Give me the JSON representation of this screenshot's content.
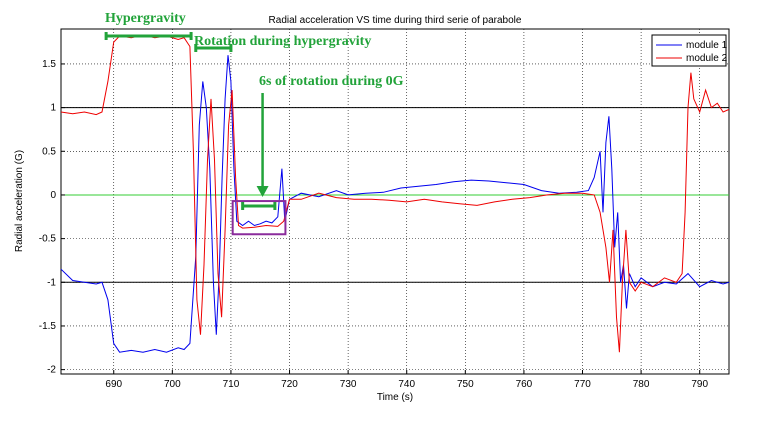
{
  "chart_data": {
    "type": "line",
    "title": "Radial acceleration VS time during third serie of parabole",
    "xlabel": "Time (s)",
    "ylabel": "Radial acceleration (G)",
    "xlim": [
      681,
      795
    ],
    "ylim": [
      -2.05,
      1.9
    ],
    "xticks": [
      690,
      700,
      710,
      720,
      730,
      740,
      750,
      760,
      770,
      780,
      790
    ],
    "yticks": [
      1.5,
      1,
      0.5,
      0,
      -0.5,
      -1,
      -1.5,
      -2
    ],
    "xtick_labels": [
      "690",
      "700",
      "710",
      "720",
      "730",
      "740",
      "750",
      "760",
      "770",
      "780",
      "790"
    ],
    "ytick_labels": [
      "1.5",
      "1",
      "0.5",
      "0",
      "-0.5",
      "-1",
      "-1.5",
      "-2"
    ],
    "grid": true,
    "legend_position": "top-right",
    "reference_lines": [
      {
        "y": 1,
        "color": "#000000"
      },
      {
        "y": -1,
        "color": "#000000"
      },
      {
        "y": 0,
        "color": "#33cc33"
      }
    ],
    "series": [
      {
        "name": "module 1",
        "color": "#0000ee",
        "points": [
          [
            681,
            -0.85
          ],
          [
            683,
            -0.98
          ],
          [
            685,
            -1.0
          ],
          [
            687,
            -1.02
          ],
          [
            688,
            -1.0
          ],
          [
            689,
            -1.2
          ],
          [
            690,
            -1.7
          ],
          [
            691,
            -1.8
          ],
          [
            693,
            -1.78
          ],
          [
            695,
            -1.8
          ],
          [
            697,
            -1.77
          ],
          [
            699,
            -1.8
          ],
          [
            701,
            -1.75
          ],
          [
            702,
            -1.77
          ],
          [
            703,
            -1.7
          ],
          [
            704,
            -0.7
          ],
          [
            704.6,
            0.8
          ],
          [
            705.2,
            1.3
          ],
          [
            705.8,
            1.0
          ],
          [
            706.4,
            0.3
          ],
          [
            707,
            -1.0
          ],
          [
            707.5,
            -1.6
          ],
          [
            708,
            -0.9
          ],
          [
            708.5,
            0.2
          ],
          [
            709,
            1.1
          ],
          [
            709.5,
            1.6
          ],
          [
            710,
            1.3
          ],
          [
            710.5,
            0.3
          ],
          [
            711,
            -0.3
          ],
          [
            712,
            -0.35
          ],
          [
            713,
            -0.3
          ],
          [
            714,
            -0.35
          ],
          [
            715,
            -0.33
          ],
          [
            716,
            -0.3
          ],
          [
            717,
            -0.32
          ],
          [
            718,
            -0.25
          ],
          [
            718.7,
            0.3
          ],
          [
            719.2,
            -0.3
          ],
          [
            720,
            -0.05
          ],
          [
            722,
            0.02
          ],
          [
            725,
            -0.02
          ],
          [
            728,
            0.05
          ],
          [
            730,
            0.0
          ],
          [
            733,
            0.02
          ],
          [
            736,
            0.03
          ],
          [
            739,
            0.08
          ],
          [
            742,
            0.1
          ],
          [
            745,
            0.12
          ],
          [
            748,
            0.15
          ],
          [
            751,
            0.17
          ],
          [
            754,
            0.16
          ],
          [
            757,
            0.14
          ],
          [
            760,
            0.12
          ],
          [
            763,
            0.05
          ],
          [
            766,
            0.02
          ],
          [
            769,
            0.03
          ],
          [
            771,
            0.05
          ],
          [
            772,
            0.2
          ],
          [
            773,
            0.5
          ],
          [
            773.5,
            -0.2
          ],
          [
            774,
            0.6
          ],
          [
            774.5,
            0.9
          ],
          [
            775,
            0.3
          ],
          [
            775.5,
            -0.6
          ],
          [
            776,
            -0.2
          ],
          [
            776.5,
            -1.0
          ],
          [
            777,
            -0.8
          ],
          [
            777.5,
            -1.3
          ],
          [
            778,
            -0.9
          ],
          [
            779,
            -1.05
          ],
          [
            780,
            -0.95
          ],
          [
            782,
            -1.05
          ],
          [
            784,
            -1.0
          ],
          [
            786,
            -1.02
          ],
          [
            788,
            -0.9
          ],
          [
            790,
            -1.05
          ],
          [
            792,
            -0.98
          ],
          [
            794,
            -1.02
          ],
          [
            795,
            -1.0
          ]
        ]
      },
      {
        "name": "module 2",
        "color": "#ee0000",
        "points": [
          [
            681,
            0.95
          ],
          [
            683,
            0.93
          ],
          [
            685,
            0.95
          ],
          [
            687,
            0.92
          ],
          [
            688,
            0.95
          ],
          [
            689,
            1.3
          ],
          [
            690,
            1.75
          ],
          [
            691,
            1.82
          ],
          [
            693,
            1.8
          ],
          [
            695,
            1.83
          ],
          [
            697,
            1.8
          ],
          [
            699,
            1.82
          ],
          [
            701,
            1.78
          ],
          [
            702,
            1.8
          ],
          [
            703,
            1.7
          ],
          [
            703.6,
            0.5
          ],
          [
            704.2,
            -1.2
          ],
          [
            704.8,
            -1.6
          ],
          [
            705.4,
            -0.8
          ],
          [
            706,
            0.4
          ],
          [
            706.6,
            1.1
          ],
          [
            707.2,
            0.4
          ],
          [
            707.8,
            -0.9
          ],
          [
            708.4,
            -1.4
          ],
          [
            709,
            -0.4
          ],
          [
            709.6,
            0.8
          ],
          [
            710.2,
            1.2
          ],
          [
            710.8,
            0.2
          ],
          [
            711.3,
            -0.35
          ],
          [
            712,
            -0.38
          ],
          [
            714,
            -0.37
          ],
          [
            716,
            -0.35
          ],
          [
            718,
            -0.36
          ],
          [
            719,
            -0.3
          ],
          [
            720,
            -0.05
          ],
          [
            722,
            -0.05
          ],
          [
            725,
            0.02
          ],
          [
            728,
            -0.03
          ],
          [
            731,
            -0.05
          ],
          [
            734,
            -0.05
          ],
          [
            737,
            -0.06
          ],
          [
            740,
            -0.08
          ],
          [
            743,
            -0.05
          ],
          [
            746,
            -0.08
          ],
          [
            749,
            -0.1
          ],
          [
            752,
            -0.12
          ],
          [
            755,
            -0.08
          ],
          [
            758,
            -0.05
          ],
          [
            761,
            -0.03
          ],
          [
            764,
            0.0
          ],
          [
            767,
            0.02
          ],
          [
            770,
            0.02
          ],
          [
            772,
            0.0
          ],
          [
            773,
            -0.2
          ],
          [
            774,
            -0.6
          ],
          [
            774.6,
            -1.0
          ],
          [
            775.2,
            -0.4
          ],
          [
            775.8,
            -1.4
          ],
          [
            776.3,
            -1.8
          ],
          [
            776.8,
            -1.0
          ],
          [
            777.4,
            -0.4
          ],
          [
            778,
            -1.0
          ],
          [
            779,
            -1.1
          ],
          [
            780,
            -1.0
          ],
          [
            782,
            -1.05
          ],
          [
            784,
            -0.95
          ],
          [
            786,
            -1.0
          ],
          [
            787,
            -0.9
          ],
          [
            787.5,
            -0.2
          ],
          [
            788,
            1.0
          ],
          [
            788.5,
            1.4
          ],
          [
            789,
            1.1
          ],
          [
            790,
            0.95
          ],
          [
            791,
            1.2
          ],
          [
            792,
            1.0
          ],
          [
            793,
            1.05
          ],
          [
            794,
            0.95
          ],
          [
            795,
            0.98
          ]
        ]
      }
    ],
    "annotations": [
      {
        "text": "Hypergravity",
        "color": "#22a33a"
      },
      {
        "text": "Rotation during hypergravity",
        "color": "#22a33a"
      },
      {
        "text": "6s of rotation during 0G",
        "color": "#22a33a"
      }
    ],
    "highlight_box_color": "#8b2c9c"
  }
}
